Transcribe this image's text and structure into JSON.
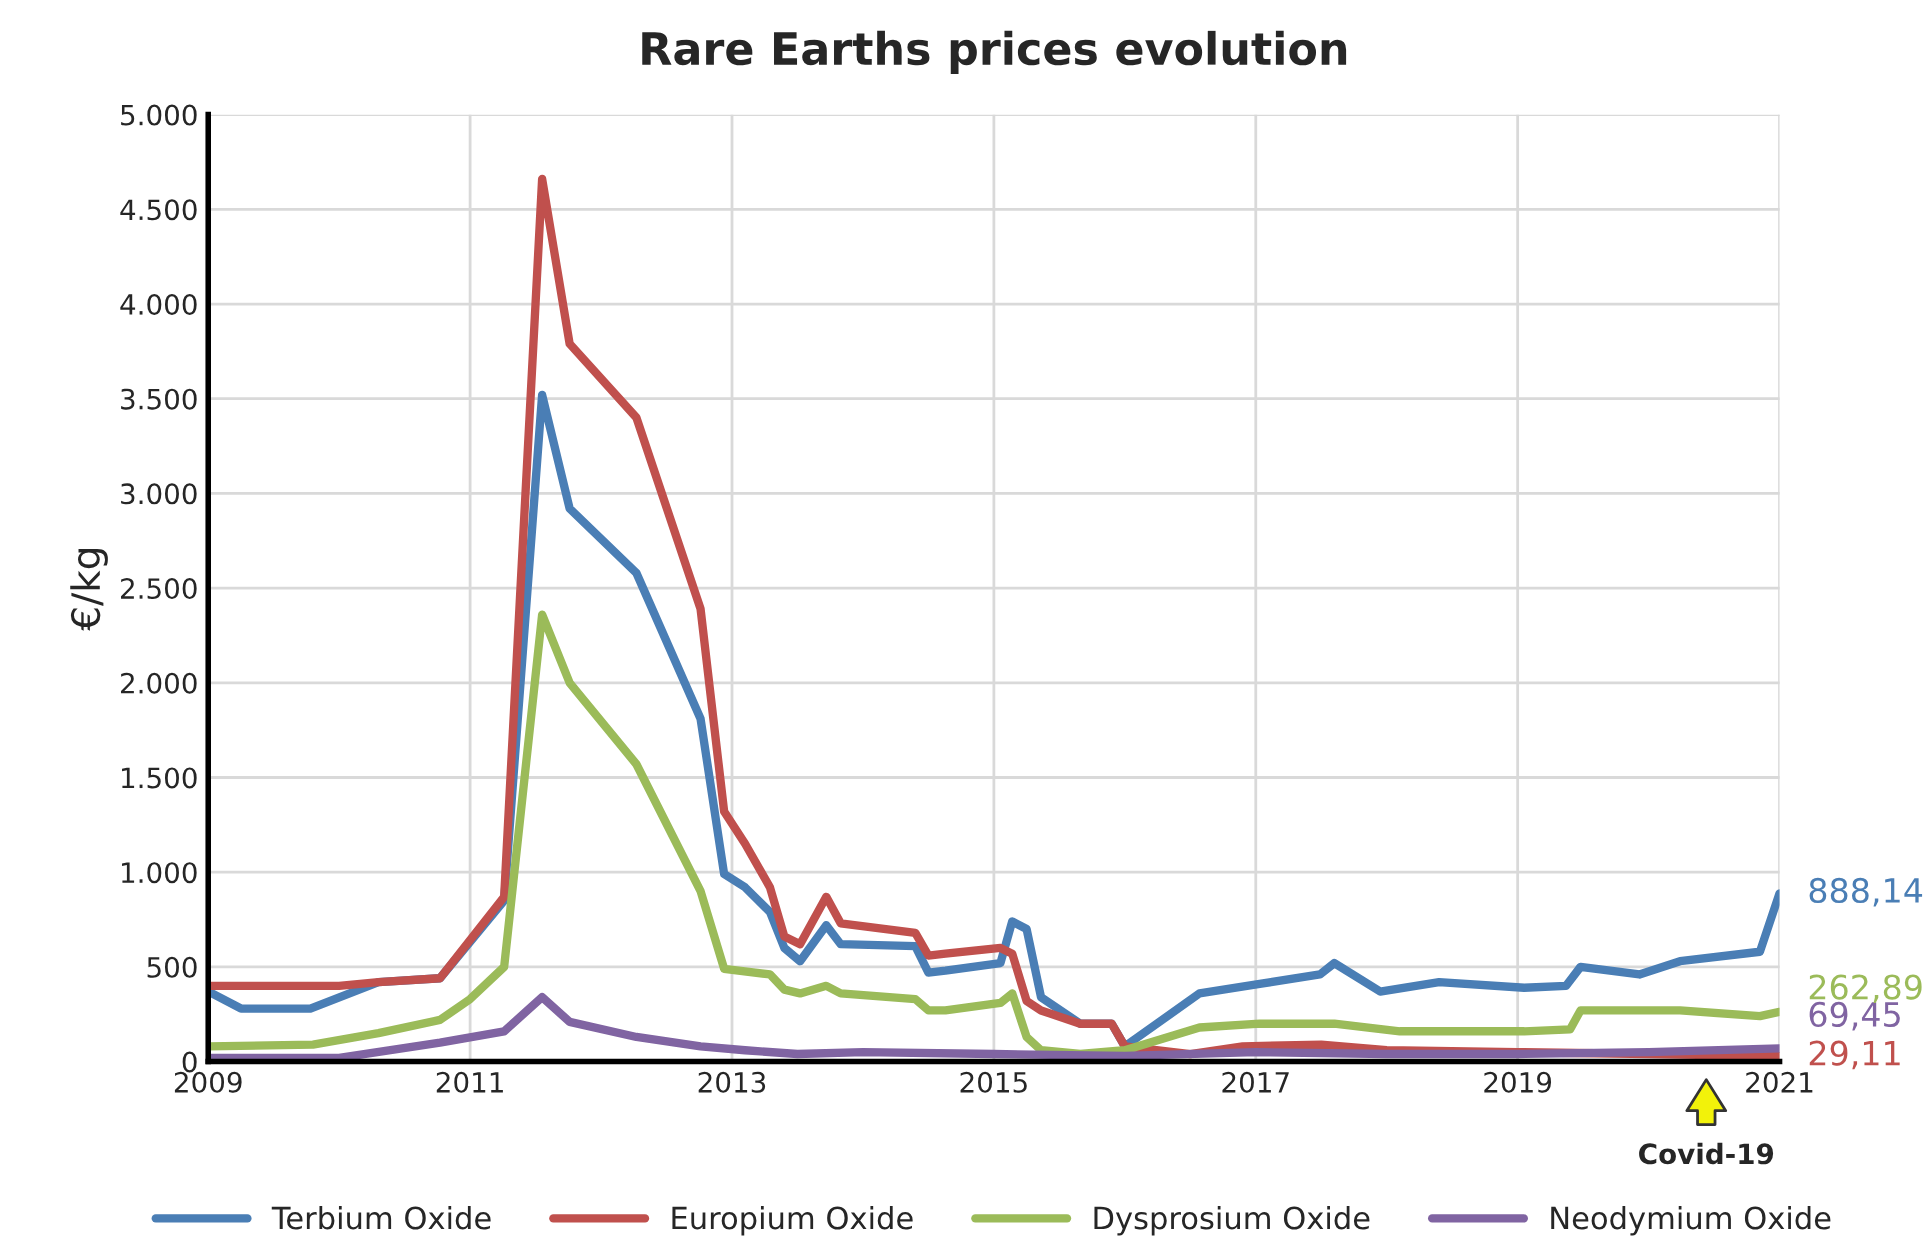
{
  "chart_data": {
    "type": "line",
    "title": "Rare Earths prices evolution",
    "ylabel": "€/kg",
    "xlim": [
      2009,
      2021
    ],
    "xticks": [
      2009,
      2011,
      2013,
      2015,
      2017,
      2019,
      2021
    ],
    "ylim": [
      0,
      5000
    ],
    "yticks": [
      0,
      {
        "value": 500,
        "label": "500"
      },
      {
        "value": 1000,
        "label": "1.000"
      },
      {
        "value": 1500,
        "label": "1.500"
      },
      {
        "value": 2000,
        "label": "2.000"
      },
      {
        "value": 2500,
        "label": "2.500"
      },
      {
        "value": 3000,
        "label": "3.000"
      },
      {
        "value": 3500,
        "label": "3.500"
      },
      {
        "value": 4000,
        "label": "4.000"
      },
      {
        "value": 4500,
        "label": "4.500"
      },
      {
        "value": 5000,
        "label": "5.000"
      }
    ],
    "grid": true,
    "legend": "bottom",
    "marker": "none",
    "line_style": "solid",
    "annotations": [
      "Covid-19"
    ],
    "series": [
      {
        "name": "Terbium Oxide",
        "color": "#4a7eb5",
        "x": [
          2009.0,
          2009.25,
          2009.78,
          2010.3,
          2010.77,
          2011.26,
          2011.55,
          2011.76,
          2012.27,
          2012.76,
          2012.94,
          2013.1,
          2013.29,
          2013.4,
          2013.52,
          2013.72,
          2013.83,
          2014.4,
          2014.5,
          2014.63,
          2015.05,
          2015.14,
          2015.25,
          2015.36,
          2015.66,
          2015.9,
          2016.0,
          2016.57,
          2017.03,
          2017.49,
          2017.6,
          2017.95,
          2018.4,
          2019.05,
          2019.37,
          2019.48,
          2019.93,
          2020.24,
          2020.85,
          2021.0
        ],
        "values": [
          370,
          280,
          280,
          420,
          440,
          850,
          3520,
          2920,
          2580,
          1810,
          990,
          920,
          790,
          600,
          530,
          720,
          620,
          610,
          470,
          480,
          520,
          740,
          700,
          340,
          200,
          200,
          80,
          360,
          410,
          460,
          520,
          370,
          420,
          390,
          400,
          500,
          460,
          530,
          580,
          888.14
        ],
        "value_labels": [
          null,
          null,
          null,
          null,
          null,
          null,
          null,
          null,
          null,
          null,
          null,
          null,
          null,
          null,
          null,
          null,
          null,
          null,
          null,
          null,
          null,
          null,
          null,
          null,
          null,
          null,
          null,
          null,
          null,
          null,
          null,
          null,
          null,
          null,
          null,
          null,
          null,
          null,
          null,
          "888,14"
        ]
      },
      {
        "name": "Europium Oxide",
        "color": "#c0504d",
        "x": [
          2009.0,
          2010.0,
          2010.3,
          2010.77,
          2011.26,
          2011.55,
          2011.76,
          2012.27,
          2012.76,
          2012.94,
          2013.1,
          2013.29,
          2013.4,
          2013.52,
          2013.72,
          2013.83,
          2014.4,
          2014.5,
          2014.63,
          2015.05,
          2015.14,
          2015.25,
          2015.36,
          2015.66,
          2015.9,
          2016.0,
          2016.5,
          2016.9,
          2017.5,
          2018.0,
          2019.0,
          2020.0,
          2021.0
        ],
        "values": [
          400,
          400,
          420,
          440,
          870,
          4660,
          3790,
          3400,
          2390,
          1320,
          1150,
          920,
          660,
          620,
          870,
          730,
          680,
          560,
          570,
          600,
          570,
          320,
          270,
          200,
          200,
          80,
          40,
          80,
          90,
          60,
          50,
          40,
          29.11
        ],
        "value_labels": [
          null,
          null,
          null,
          null,
          null,
          null,
          null,
          null,
          null,
          null,
          null,
          null,
          null,
          null,
          null,
          null,
          null,
          null,
          null,
          null,
          null,
          null,
          null,
          null,
          null,
          null,
          null,
          null,
          null,
          null,
          null,
          null,
          "29,11"
        ]
      },
      {
        "name": "Dysprosium Oxide",
        "color": "#9bbb59",
        "x": [
          2009.0,
          2009.8,
          2010.3,
          2010.77,
          2011.0,
          2011.26,
          2011.55,
          2011.76,
          2012.27,
          2012.76,
          2012.94,
          2013.29,
          2013.4,
          2013.52,
          2013.72,
          2013.83,
          2014.4,
          2014.5,
          2014.63,
          2015.05,
          2015.14,
          2015.25,
          2015.36,
          2015.66,
          2016.0,
          2016.57,
          2017.03,
          2017.6,
          2018.1,
          2019.05,
          2019.4,
          2019.48,
          2020.24,
          2020.85,
          2021.0
        ],
        "values": [
          80,
          90,
          150,
          220,
          330,
          500,
          2360,
          2000,
          1570,
          900,
          490,
          460,
          380,
          360,
          400,
          360,
          330,
          270,
          270,
          310,
          360,
          130,
          60,
          40,
          60,
          180,
          200,
          200,
          160,
          160,
          170,
          270,
          270,
          240,
          262.89
        ],
        "value_labels": [
          null,
          null,
          null,
          null,
          null,
          null,
          null,
          null,
          null,
          null,
          null,
          null,
          null,
          null,
          null,
          null,
          null,
          null,
          null,
          null,
          null,
          null,
          null,
          null,
          null,
          null,
          null,
          null,
          null,
          null,
          null,
          null,
          null,
          null,
          "262,89"
        ]
      },
      {
        "name": "Neodymium Oxide",
        "color": "#8064a2",
        "x": [
          2009.0,
          2010.0,
          2010.77,
          2011.26,
          2011.55,
          2011.76,
          2012.27,
          2012.76,
          2013.1,
          2013.5,
          2014.0,
          2015.0,
          2016.0,
          2017.0,
          2018.0,
          2019.0,
          2020.0,
          2021.0
        ],
        "values": [
          20,
          20,
          100,
          160,
          340,
          210,
          130,
          80,
          60,
          40,
          50,
          40,
          30,
          50,
          40,
          40,
          50,
          69.45
        ],
        "value_labels": [
          null,
          null,
          null,
          null,
          null,
          null,
          null,
          null,
          null,
          null,
          null,
          null,
          null,
          null,
          null,
          null,
          null,
          "69,45"
        ]
      }
    ]
  }
}
